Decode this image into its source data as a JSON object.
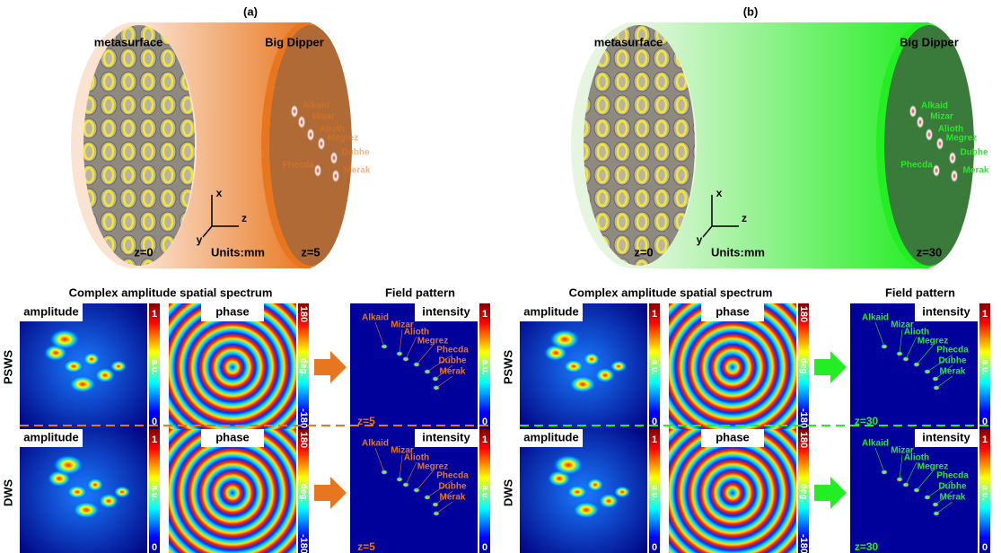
{
  "panels": [
    {
      "label": "(a)",
      "source": "metasurface",
      "target": "Big Dipper",
      "z_start": "z=0",
      "z_end": "z=5",
      "units": "Units:mm",
      "axes": [
        "x",
        "y",
        "z"
      ],
      "spectrum_title": "Complex amplitude spatial spectrum",
      "field_title": "Field pattern",
      "rows": [
        "PSWS",
        "DWS"
      ],
      "maps": [
        "amplitude",
        "phase",
        "intensity"
      ],
      "stars": [
        "Alkaid",
        "Mizar",
        "Alioth",
        "Megrez",
        "Phecda",
        "Dubhe",
        "Merak"
      ],
      "amplitude_bar": {
        "max": "1",
        "min": "0",
        "unit": "a.u."
      },
      "phase_bar": {
        "max": "180",
        "min": "-180",
        "unit": "deg."
      },
      "accent": "#e8761e",
      "accent_light": "#fbe3d2",
      "disk": "#b06a35"
    },
    {
      "label": "(b)",
      "source": "metasurface",
      "target": "Big Dipper",
      "z_start": "z=0",
      "z_end": "z=30",
      "units": "Units:mm",
      "axes": [
        "x",
        "y",
        "z"
      ],
      "spectrum_title": "Complex amplitude spatial spectrum",
      "field_title": "Field pattern",
      "rows": [
        "PSWS",
        "DWS"
      ],
      "maps": [
        "amplitude",
        "phase",
        "intensity"
      ],
      "stars": [
        "Alkaid",
        "Mizar",
        "Alioth",
        "Megrez",
        "Phecda",
        "Dubhe",
        "Merak"
      ],
      "amplitude_bar": {
        "max": "1",
        "min": "0",
        "unit": "a.u."
      },
      "phase_bar": {
        "max": "180",
        "min": "-180",
        "unit": "deg."
      },
      "accent": "#22ee22",
      "accent_light": "#e6f5e0",
      "disk": "#3a7a3a"
    }
  ]
}
